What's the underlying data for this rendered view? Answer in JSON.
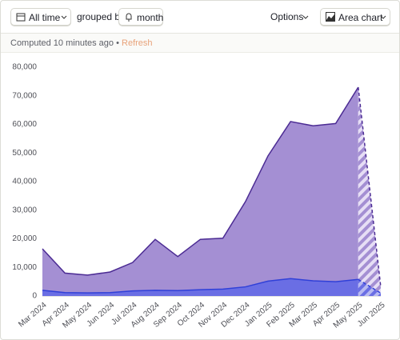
{
  "toolbar": {
    "date_range": "All time",
    "grouped_by": "grouped by",
    "interval": "month",
    "options": "Options",
    "chart_type": "Area chart"
  },
  "status": {
    "computed": "Computed 10 minutes ago",
    "separator": "•",
    "refresh": "Refresh"
  },
  "chart_data": {
    "type": "area",
    "categories": [
      "Mar 2024",
      "Apr 2024",
      "May 2024",
      "Jun 2024",
      "Jul 2024",
      "Aug 2024",
      "Sep 2024",
      "Oct 2024",
      "Nov 2024",
      "Dec 2024",
      "Jan 2025",
      "Feb 2025",
      "Mar 2025",
      "Apr 2025",
      "May 2025",
      "Jun 2025"
    ],
    "series": [
      {
        "color": "#a48fd3",
        "line_color": "#4b2b93",
        "values": [
          16500,
          8000,
          7300,
          8400,
          11700,
          19800,
          13800,
          19800,
          20200,
          33000,
          49000,
          61000,
          59500,
          60300,
          73000,
          3000
        ]
      },
      {
        "color": "#6a6ee4",
        "line_color": "#3040d8",
        "values": [
          2000,
          1200,
          1100,
          1200,
          1800,
          2000,
          1900,
          2200,
          2400,
          3200,
          5200,
          6100,
          5300,
          5000,
          5800,
          1000
        ]
      }
    ],
    "ylim": [
      0,
      80000
    ],
    "yticks": [
      0,
      {
        "value": 10000,
        "label": "10,000"
      },
      {
        "value": 20000,
        "label": "20,000"
      },
      {
        "value": 30000,
        "label": "30,000"
      },
      {
        "value": 40000,
        "label": "40,000"
      },
      {
        "value": 50000,
        "label": "50,000"
      },
      {
        "value": 60000,
        "label": "60,000"
      },
      {
        "value": 70000,
        "label": "70,000"
      },
      {
        "value": 80000,
        "label": "80,000"
      }
    ],
    "grid": false,
    "incomplete_last_period": true
  }
}
